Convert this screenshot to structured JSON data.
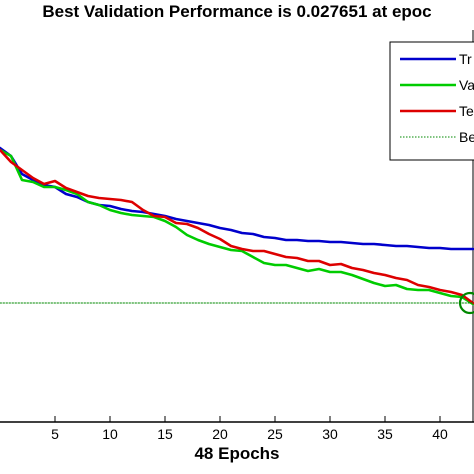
{
  "chart_data": {
    "type": "line",
    "title": "Best Validation Performance is 0.027651 at epoc",
    "xlabel": "48 Epochs",
    "x_ticks": [
      5,
      10,
      15,
      20,
      25,
      30,
      35,
      40
    ],
    "xlim": [
      0,
      43
    ],
    "legend": {
      "placement": "top-right",
      "entries": [
        "Tr",
        "Va",
        "Te",
        "Be"
      ]
    },
    "series": [
      {
        "name": "Tr",
        "color": "#0000cc",
        "x": [
          0,
          1,
          2,
          3,
          4,
          5,
          6,
          7,
          8,
          9,
          10,
          11,
          12,
          13,
          14,
          15,
          16,
          17,
          18,
          19,
          20,
          21,
          22,
          23,
          24,
          25,
          26,
          27,
          28,
          29,
          30,
          31,
          32,
          33,
          34,
          35,
          36,
          37,
          38,
          39,
          40,
          41,
          42,
          43
        ],
        "y": [
          148,
          156,
          174,
          180,
          185,
          187,
          194,
          197,
          202,
          205,
          206,
          209,
          211,
          212,
          214,
          216,
          219,
          221,
          223,
          225,
          228,
          230,
          233,
          234,
          237,
          238,
          240,
          240,
          241,
          241,
          242,
          242,
          243,
          244,
          244,
          245,
          246,
          246,
          247,
          248,
          248,
          249,
          249,
          249
        ]
      },
      {
        "name": "Va",
        "color": "#00cc00",
        "x": [
          0,
          1,
          2,
          3,
          4,
          5,
          6,
          7,
          8,
          9,
          10,
          11,
          12,
          13,
          14,
          15,
          16,
          17,
          18,
          19,
          20,
          21,
          22,
          23,
          24,
          25,
          26,
          27,
          28,
          29,
          30,
          31,
          32,
          33,
          34,
          35,
          36,
          37,
          38,
          39,
          40,
          41,
          42,
          43
        ],
        "y": [
          150,
          156,
          180,
          182,
          187,
          187,
          190,
          194,
          202,
          205,
          210,
          213,
          215,
          216,
          217,
          221,
          227,
          235,
          240,
          244,
          247,
          250,
          251,
          257,
          263,
          265,
          265,
          268,
          271,
          269,
          272,
          272,
          275,
          279,
          283,
          286,
          285,
          289,
          290,
          290,
          293,
          296,
          297,
          304
        ]
      },
      {
        "name": "Te",
        "color": "#dd0000",
        "x": [
          0,
          1,
          2,
          3,
          4,
          5,
          6,
          7,
          8,
          9,
          10,
          11,
          12,
          13,
          14,
          15,
          16,
          17,
          18,
          19,
          20,
          21,
          22,
          23,
          24,
          25,
          26,
          27,
          28,
          29,
          30,
          31,
          32,
          33,
          34,
          35,
          36,
          37,
          38,
          39,
          40,
          41,
          42,
          43
        ],
        "y": [
          150,
          162,
          170,
          178,
          184,
          181,
          188,
          192,
          196,
          198,
          199,
          200,
          202,
          210,
          216,
          217,
          223,
          224,
          228,
          234,
          239,
          246,
          249,
          251,
          251,
          254,
          257,
          258,
          261,
          261,
          265,
          264,
          268,
          270,
          273,
          275,
          278,
          280,
          285,
          287,
          290,
          292,
          295,
          303
        ]
      },
      {
        "name": "Be",
        "color": "#008800",
        "style": "dotted",
        "x": [
          0,
          43
        ],
        "y": [
          303,
          303
        ]
      }
    ],
    "best_marker": {
      "x": 43,
      "y": 303
    }
  }
}
